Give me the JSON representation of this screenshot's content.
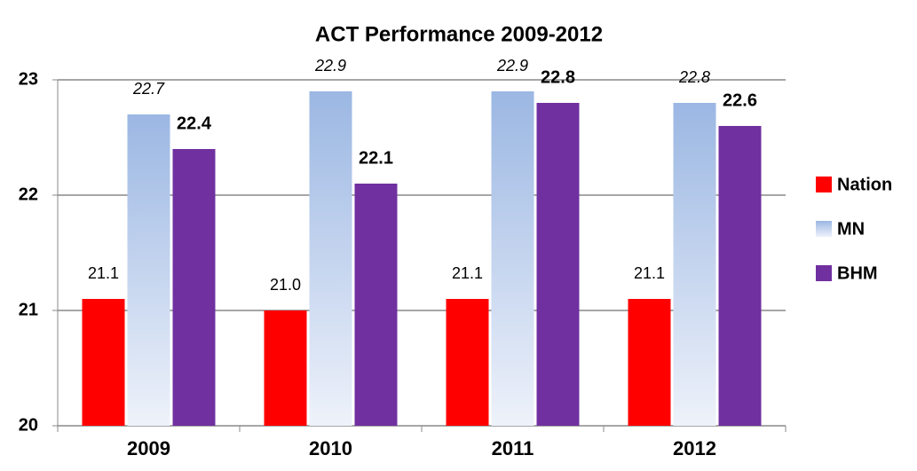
{
  "chart_data": {
    "type": "bar",
    "title": "ACT Performance 2009-2012",
    "categories": [
      "2009",
      "2010",
      "2011",
      "2012"
    ],
    "series": [
      {
        "name": "Nation",
        "color": "#ff0000",
        "values": [
          21.1,
          21.0,
          21.1,
          21.1
        ],
        "value_labels": [
          "21.1",
          "21.0",
          "21.1",
          "21.1"
        ]
      },
      {
        "name": "MN",
        "color": "#9bb7e3",
        "values": [
          22.7,
          22.9,
          22.9,
          22.8
        ],
        "value_labels": [
          "22.7",
          "22.9",
          "22.9",
          "22.8"
        ]
      },
      {
        "name": "BHM",
        "color": "#7030a0",
        "values": [
          22.4,
          22.1,
          22.8,
          22.6
        ],
        "value_labels": [
          "22.4",
          "22.1",
          "22.8",
          "22.6"
        ]
      }
    ],
    "ylim": [
      20,
      23
    ],
    "yticks": [
      20,
      21,
      22,
      23
    ],
    "grid": true,
    "legend": "right"
  }
}
